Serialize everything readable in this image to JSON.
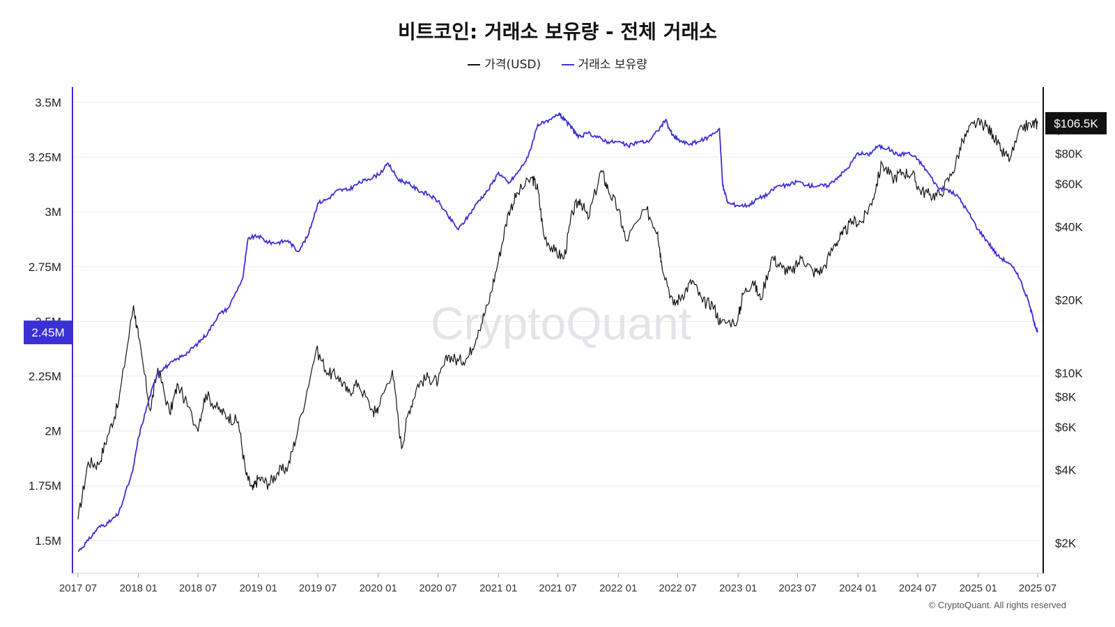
{
  "title": "비트코인: 거래소 보유량 - 전체 거래소",
  "legend": {
    "price_label": "가격(USD)",
    "reserve_label": "거래소 보유량"
  },
  "watermark": "CryptoQuant",
  "copyright": "© CryptoQuant. All rights reserved",
  "colors": {
    "price": "#111111",
    "reserve": "#3b2fd6",
    "grid": "#ececec",
    "badge_reserve": "#3b2fd6",
    "badge_price": "#111111"
  },
  "chart_data": {
    "type": "line",
    "x_ticks": [
      "2017 07",
      "2018 01",
      "2018 07",
      "2019 01",
      "2019 07",
      "2020 01",
      "2020 07",
      "2021 01",
      "2021 07",
      "2022 01",
      "2022 07",
      "2023 01",
      "2023 07",
      "2024 01",
      "2024 07",
      "2025 01",
      "2025 07"
    ],
    "left_axis": {
      "ylim": [
        1.35,
        3.57
      ],
      "unit": "M",
      "ticks": [
        1.5,
        1.75,
        2,
        2.25,
        2.5,
        2.75,
        3,
        3.25,
        3.5
      ],
      "tick_labels": [
        "1.5M",
        "1.75M",
        "2M",
        "2.25M",
        "2.5M",
        "2.75M",
        "3M",
        "3.25M",
        "3.5M"
      ],
      "current_value_label": "2.45M"
    },
    "right_axis": {
      "scale": "log",
      "ylim": [
        1500,
        150000
      ],
      "ticks": [
        2000,
        4000,
        6000,
        8000,
        10000,
        20000,
        40000,
        60000,
        80000,
        100000
      ],
      "tick_labels": [
        "$2K",
        "$4K",
        "$6K",
        "$8K",
        "$10K",
        "$20K",
        "$40K",
        "$60K",
        "$80K",
        "$100K"
      ],
      "current_value_label": "$106.5K"
    },
    "series": [
      {
        "name": "가격(USD)",
        "axis": "right",
        "x": [
          "2017-07-01",
          "2017-08-01",
          "2017-09-01",
          "2017-10-01",
          "2017-11-01",
          "2017-12-17",
          "2018-01-01",
          "2018-02-06",
          "2018-03-01",
          "2018-04-06",
          "2018-05-01",
          "2018-06-29",
          "2018-07-25",
          "2018-09-01",
          "2018-10-01",
          "2018-11-01",
          "2018-11-25",
          "2018-12-15",
          "2019-01-01",
          "2019-02-01",
          "2019-03-01",
          "2019-04-01",
          "2019-05-01",
          "2019-06-26",
          "2019-08-01",
          "2019-09-01",
          "2019-10-01",
          "2019-11-01",
          "2019-12-17",
          "2020-01-01",
          "2020-02-13",
          "2020-03-12",
          "2020-04-01",
          "2020-05-01",
          "2020-06-01",
          "2020-07-01",
          "2020-08-01",
          "2020-09-01",
          "2020-10-01",
          "2020-11-01",
          "2020-12-01",
          "2021-01-01",
          "2021-02-01",
          "2021-03-01",
          "2021-04-14",
          "2021-05-01",
          "2021-05-19",
          "2021-06-22",
          "2021-07-20",
          "2021-08-15",
          "2021-09-06",
          "2021-10-01",
          "2021-11-10",
          "2021-12-01",
          "2022-01-01",
          "2022-01-24",
          "2022-03-28",
          "2022-05-01",
          "2022-05-12",
          "2022-06-18",
          "2022-07-15",
          "2022-08-15",
          "2022-09-15",
          "2022-10-15",
          "2022-11-09",
          "2022-12-31",
          "2023-01-15",
          "2023-02-15",
          "2023-03-10",
          "2023-04-14",
          "2023-05-15",
          "2023-06-15",
          "2023-07-15",
          "2023-08-17",
          "2023-09-15",
          "2023-10-23",
          "2023-11-15",
          "2023-12-15",
          "2024-01-15",
          "2024-02-15",
          "2024-03-14",
          "2024-04-15",
          "2024-05-15",
          "2024-06-15",
          "2024-07-05",
          "2024-08-05",
          "2024-09-06",
          "2024-10-15",
          "2024-11-15",
          "2024-12-17",
          "2025-01-20",
          "2025-02-15",
          "2025-03-10",
          "2025-04-08",
          "2025-05-15",
          "2025-06-15",
          "2025-07-01"
        ],
        "values": [
          2500,
          4300,
          4200,
          5600,
          7500,
          19000,
          14000,
          7000,
          10500,
          6800,
          9000,
          5900,
          8200,
          7100,
          6600,
          6300,
          3800,
          3300,
          3700,
          3500,
          3900,
          4100,
          5800,
          12500,
          10000,
          9700,
          8300,
          9100,
          6900,
          7200,
          10300,
          4900,
          6800,
          9000,
          9600,
          9200,
          11800,
          11200,
          11600,
          15000,
          19200,
          29000,
          46000,
          55000,
          63500,
          57000,
          37000,
          31500,
          29800,
          46000,
          52000,
          43000,
          68000,
          57000,
          47000,
          35000,
          47000,
          38000,
          29000,
          19000,
          21000,
          24000,
          19500,
          19200,
          16000,
          16500,
          21000,
          24000,
          20000,
          30000,
          27000,
          26000,
          30000,
          26000,
          26500,
          34000,
          37000,
          42000,
          42000,
          52000,
          73000,
          63000,
          67000,
          66000,
          57000,
          54000,
          54000,
          67000,
          90000,
          106000,
          105000,
          96000,
          82000,
          76000,
          103000,
          105000,
          106500
        ]
      },
      {
        "name": "거래소 보유량",
        "axis": "left",
        "x": [
          "2017-07-01",
          "2017-08-01",
          "2017-09-01",
          "2017-10-01",
          "2017-11-01",
          "2017-12-15",
          "2018-01-01",
          "2018-02-01",
          "2018-03-01",
          "2018-04-01",
          "2018-05-01",
          "2018-06-01",
          "2018-07-01",
          "2018-08-01",
          "2018-09-01",
          "2018-10-01",
          "2018-11-15",
          "2018-12-01",
          "2019-01-01",
          "2019-02-01",
          "2019-03-01",
          "2019-04-01",
          "2019-05-01",
          "2019-06-01",
          "2019-07-01",
          "2019-08-01",
          "2019-09-01",
          "2019-10-01",
          "2019-11-01",
          "2019-12-01",
          "2020-01-01",
          "2020-02-01",
          "2020-03-01",
          "2020-04-01",
          "2020-05-01",
          "2020-06-01",
          "2020-07-01",
          "2020-08-01",
          "2020-09-01",
          "2020-10-01",
          "2020-11-01",
          "2020-12-01",
          "2021-01-01",
          "2021-02-01",
          "2021-03-01",
          "2021-04-01",
          "2021-05-01",
          "2021-06-01",
          "2021-07-05",
          "2021-07-20",
          "2021-08-15",
          "2021-09-01",
          "2021-10-01",
          "2021-11-01",
          "2021-12-01",
          "2022-01-01",
          "2022-02-01",
          "2022-03-01",
          "2022-04-01",
          "2022-05-01",
          "2022-05-25",
          "2022-06-15",
          "2022-07-01",
          "2022-08-01",
          "2022-09-01",
          "2022-10-01",
          "2022-11-05",
          "2022-11-15",
          "2022-12-01",
          "2023-01-01",
          "2023-02-01",
          "2023-03-01",
          "2023-04-01",
          "2023-05-01",
          "2023-06-01",
          "2023-07-01",
          "2023-08-01",
          "2023-09-01",
          "2023-10-01",
          "2023-11-01",
          "2023-12-01",
          "2024-01-01",
          "2024-02-01",
          "2024-03-01",
          "2024-04-01",
          "2024-05-01",
          "2024-06-01",
          "2024-07-01",
          "2024-08-01",
          "2024-09-01",
          "2024-10-01",
          "2024-11-01",
          "2024-12-01",
          "2025-01-01",
          "2025-02-01",
          "2025-03-01",
          "2025-04-01",
          "2025-05-01",
          "2025-06-01",
          "2025-06-20",
          "2025-07-01"
        ],
        "values": [
          1.45,
          1.5,
          1.56,
          1.58,
          1.62,
          1.82,
          1.97,
          2.14,
          2.27,
          2.3,
          2.33,
          2.36,
          2.4,
          2.45,
          2.53,
          2.56,
          2.7,
          2.88,
          2.89,
          2.86,
          2.86,
          2.87,
          2.82,
          2.89,
          3.04,
          3.06,
          3.1,
          3.1,
          3.13,
          3.15,
          3.17,
          3.22,
          3.15,
          3.13,
          3.1,
          3.08,
          3.05,
          2.98,
          2.92,
          2.98,
          3.05,
          3.1,
          3.18,
          3.13,
          3.18,
          3.25,
          3.4,
          3.41,
          3.45,
          3.42,
          3.38,
          3.34,
          3.36,
          3.34,
          3.32,
          3.32,
          3.3,
          3.32,
          3.32,
          3.37,
          3.42,
          3.35,
          3.33,
          3.31,
          3.32,
          3.34,
          3.38,
          3.12,
          3.04,
          3.03,
          3.03,
          3.06,
          3.08,
          3.12,
          3.12,
          3.14,
          3.12,
          3.12,
          3.12,
          3.16,
          3.2,
          3.27,
          3.26,
          3.3,
          3.29,
          3.26,
          3.27,
          3.24,
          3.18,
          3.11,
          3.1,
          3.07,
          3.0,
          2.92,
          2.86,
          2.8,
          2.77,
          2.72,
          2.6,
          2.5,
          2.45
        ]
      }
    ]
  }
}
